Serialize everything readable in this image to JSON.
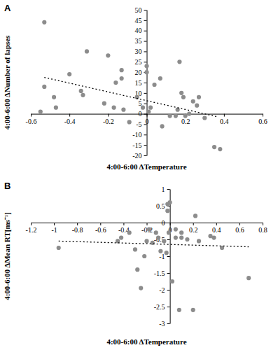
{
  "chart_data": [
    {
      "type": "scatter",
      "title": "A",
      "x_label": "4:00-6:00 ΔTemperature",
      "y_label": "4:00-6:00 ΔNumber of lapses",
      "xlim": [
        -0.6,
        0.6
      ],
      "ylim": [
        -20,
        50
      ],
      "xticks": [
        -0.6,
        -0.4,
        -0.2,
        0,
        0.2,
        0.4,
        0.6
      ],
      "yticks": [
        -20,
        -15,
        -10,
        -5,
        0,
        5,
        10,
        15,
        20,
        25,
        30,
        35,
        40,
        45,
        50
      ],
      "grid": false,
      "series": [
        {
          "type": "scatter",
          "marker": "circle",
          "color": "#8c8c8c",
          "x": [
            -0.53,
            -0.53,
            -0.55,
            -0.48,
            -0.47,
            -0.4,
            -0.31,
            -0.34,
            -0.33,
            -0.2,
            -0.16,
            -0.13,
            -0.13,
            -0.17,
            -0.22,
            -0.12,
            -0.09,
            -0.05,
            -0.02,
            0.0,
            0.0,
            0.01,
            0.02,
            0.04,
            0.07,
            0.08,
            0.12,
            0.16,
            0.17,
            0.18,
            0.19,
            0.2,
            0.22,
            0.24,
            0.26,
            0.27,
            0.3,
            0.35,
            0.38,
            0.15
          ],
          "values": [
            44,
            13,
            1,
            8,
            3,
            19,
            30,
            11,
            9,
            28,
            15,
            21,
            17,
            3,
            5,
            2,
            -4,
            8,
            3,
            23,
            20,
            1,
            3,
            14,
            17,
            -6,
            -1,
            2,
            25,
            10,
            8,
            -1,
            0,
            6,
            4,
            8,
            -2,
            -16,
            -17,
            -1
          ]
        },
        {
          "type": "line",
          "line_style": "dotted",
          "color": "#000000",
          "x": [
            -0.53,
            0.37
          ],
          "values": [
            17.5,
            -1.5
          ]
        }
      ]
    },
    {
      "type": "scatter",
      "title": "B",
      "x_label": "4:00-6:00 ΔTemperature",
      "y_label": "4:00-6:00 ΔMean RT[ms⁻¹]",
      "xlim": [
        -1.2,
        0.8
      ],
      "ylim": [
        -3,
        1
      ],
      "xticks": [
        -1.2,
        -1,
        -0.8,
        -0.6,
        -0.4,
        -0.2,
        0,
        0.2,
        0.4,
        0.6,
        0.8
      ],
      "yticks": [
        -3,
        -2.5,
        -2,
        -1.5,
        -1,
        -0.5,
        0,
        0.5,
        1
      ],
      "grid": false,
      "series": [
        {
          "type": "scatter",
          "marker": "circle",
          "color": "#8c8c8c",
          "x": [
            -0.96,
            -0.45,
            -0.42,
            -0.35,
            -0.3,
            -0.28,
            -0.25,
            -0.22,
            -0.2,
            -0.18,
            -0.15,
            -0.12,
            -0.1,
            -0.08,
            -0.05,
            -0.03,
            -0.02,
            0.0,
            -0.01,
            -0.02,
            0.02,
            0.05,
            0.08,
            0.1,
            0.15,
            0.2,
            0.22,
            0.25,
            0.35,
            0.38,
            0.45,
            0.68,
            0.05,
            0.1
          ],
          "values": [
            -0.75,
            -0.55,
            -0.45,
            -0.3,
            -0.8,
            -1.4,
            -1.95,
            -1.0,
            -0.55,
            -0.2,
            -0.6,
            -0.3,
            -0.45,
            -0.85,
            -0.55,
            -0.9,
            0.55,
            0.6,
            -0.3,
            0.35,
            -1.75,
            -0.45,
            -2.6,
            -0.3,
            -0.5,
            -2.6,
            0.2,
            -0.55,
            -0.4,
            -0.45,
            -0.75,
            -1.65,
            -0.2,
            -0.45
          ]
        },
        {
          "type": "line",
          "line_style": "dotted",
          "color": "#000000",
          "x": [
            -0.96,
            0.68
          ],
          "values": [
            -0.55,
            -0.72
          ]
        }
      ]
    }
  ]
}
